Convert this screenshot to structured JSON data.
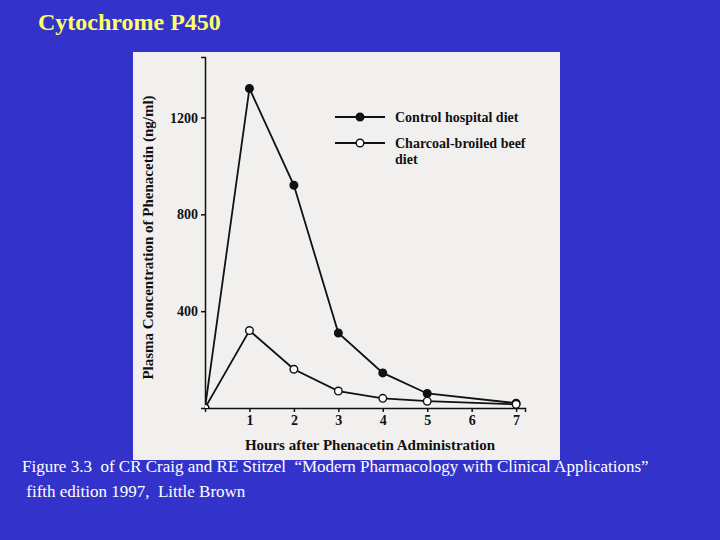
{
  "chart_data": {
    "type": "line",
    "title": "Cytochrome P450",
    "x_label": "Hours after Phenacetin Administration",
    "y_label": "Plasma Concentration of Phenacetin (ng/ml)",
    "x": [
      0,
      1,
      2,
      3,
      4,
      5,
      7
    ],
    "series": [
      {
        "name": "Control hospital diet",
        "color": "#111111",
        "marker": "filled",
        "line_style": "solid",
        "values": [
          0,
          1320,
          920,
          310,
          145,
          60,
          20
        ]
      },
      {
        "name": "Charcoal-broiled beef diet",
        "color": "#111111",
        "marker": "open",
        "line_style": "solid",
        "values": [
          0,
          320,
          160,
          70,
          40,
          28,
          15
        ]
      }
    ],
    "xlim": [
      0,
      7.2
    ],
    "xticks": [
      1,
      2,
      3,
      4,
      5,
      6,
      7
    ],
    "ylim": [
      0,
      1450
    ],
    "yticks": [
      400,
      800,
      1200
    ],
    "grid": false,
    "legend": "upper right"
  },
  "caption": [
    "Figure 3.3  of CR Craig and RE Stitzel  “Modern Pharmacology with Clinical Applications”",
    " fifth edition 1997,  Little Brown"
  ]
}
